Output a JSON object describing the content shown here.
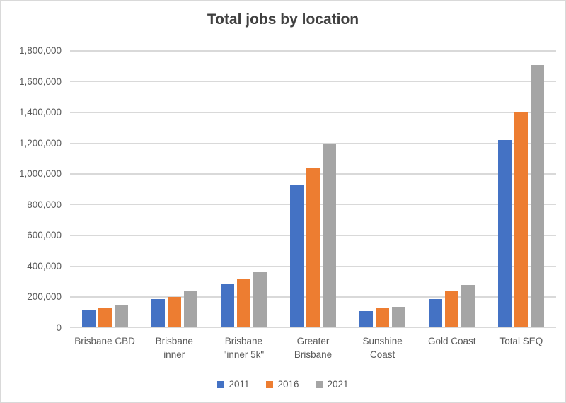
{
  "chart_data": {
    "type": "bar",
    "title": "Total jobs by location",
    "categories": [
      "Brisbane CBD",
      "Brisbane\ninner",
      "Brisbane\n\"inner 5k\"",
      "Greater\nBrisbane",
      "Sunshine\nCoast",
      "Gold Coast",
      "Total SEQ"
    ],
    "series": [
      {
        "name": "2011",
        "color": "#4472C4",
        "values": [
          115000,
          186000,
          289000,
          930000,
          106000,
          188000,
          1220000
        ]
      },
      {
        "name": "2016",
        "color": "#ED7D31",
        "values": [
          127000,
          201000,
          316000,
          1040000,
          131000,
          236000,
          1405000
        ]
      },
      {
        "name": "2021",
        "color": "#A5A5A5",
        "values": [
          147000,
          240000,
          363000,
          1194000,
          137000,
          277000,
          1707000
        ]
      }
    ],
    "ylim": [
      0,
      1800000
    ],
    "ytick_interval": 200000,
    "ytick_labels": [
      "0",
      "200,000",
      "400,000",
      "600,000",
      "800,000",
      "1,000,000",
      "1,200,000",
      "1,400,000",
      "1,600,000",
      "1,800,000"
    ],
    "grid": true,
    "legend_position": "bottom",
    "colors": {
      "series_2011": "#4472C4",
      "series_2016": "#ED7D31",
      "series_2021": "#A5A5A5",
      "gridline": "#D9D9D9",
      "axis_text": "#595959",
      "title_text": "#404040",
      "border": "#D9D9D9"
    }
  }
}
